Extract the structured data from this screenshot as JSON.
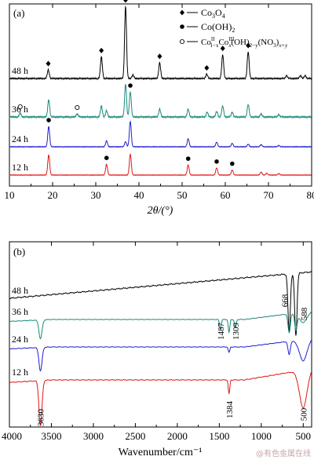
{
  "chart_data": [
    {
      "type": "line",
      "panel_label": "(a)",
      "xlabel": "2θ/(°)",
      "xlim": [
        10,
        80
      ],
      "xticks": [
        10,
        20,
        30,
        40,
        50,
        60,
        70,
        80
      ],
      "grid": false,
      "legend_position": "top-right",
      "legend": [
        {
          "marker": "diamond",
          "text": "Co3O4"
        },
        {
          "marker": "filled-circle",
          "text": "Co(OH)2"
        },
        {
          "marker": "open-circle",
          "text": "Co(II)1−x Co(III)x (OH)2−y (NO3)x+y"
        }
      ],
      "series": [
        {
          "name": "48 h",
          "color": "#000000",
          "baseline": 0,
          "peaks": [
            [
              19.0,
              0.12
            ],
            [
              31.3,
              0.3
            ],
            [
              36.9,
              1.0
            ],
            [
              38.6,
              0.05
            ],
            [
              44.8,
              0.22
            ],
            [
              55.7,
              0.06
            ],
            [
              59.4,
              0.33
            ],
            [
              65.3,
              0.37
            ],
            [
              74.2,
              0.04
            ],
            [
              77.4,
              0.04
            ],
            [
              78.5,
              0.04
            ]
          ],
          "markers": [
            {
              "x": 19.0,
              "symbol": "diamond"
            },
            {
              "x": 31.3,
              "symbol": "diamond"
            },
            {
              "x": 36.9,
              "symbol": "diamond"
            },
            {
              "x": 44.8,
              "symbol": "diamond"
            },
            {
              "x": 55.7,
              "symbol": "diamond"
            },
            {
              "x": 59.4,
              "symbol": "diamond"
            },
            {
              "x": 65.3,
              "symbol": "diamond"
            }
          ]
        },
        {
          "name": "36 h",
          "color": "#1a8a7a",
          "baseline": 1,
          "peaks": [
            [
              12.5,
              0.05
            ],
            [
              19.1,
              0.22
            ],
            [
              25.7,
              0.04
            ],
            [
              31.3,
              0.14
            ],
            [
              32.5,
              0.08
            ],
            [
              36.9,
              0.42
            ],
            [
              38.0,
              0.32
            ],
            [
              44.8,
              0.1
            ],
            [
              51.4,
              0.1
            ],
            [
              55.8,
              0.06
            ],
            [
              58.0,
              0.07
            ],
            [
              59.4,
              0.14
            ],
            [
              61.6,
              0.06
            ],
            [
              65.3,
              0.16
            ],
            [
              68.3,
              0.04
            ],
            [
              72.4,
              0.03
            ]
          ],
          "markers": [
            {
              "x": 12.5,
              "symbol": "open-circle"
            },
            {
              "x": 25.7,
              "symbol": "open-circle"
            },
            {
              "x": 38.0,
              "symbol": "filled-circle"
            }
          ]
        },
        {
          "name": "24 h",
          "color": "#1f1fd0",
          "baseline": 2,
          "peaks": [
            [
              19.1,
              0.48
            ],
            [
              32.5,
              0.14
            ],
            [
              36.9,
              0.12
            ],
            [
              38.0,
              0.6
            ],
            [
              51.4,
              0.19
            ],
            [
              58.0,
              0.11
            ],
            [
              61.6,
              0.08
            ],
            [
              65.3,
              0.06
            ],
            [
              68.3,
              0.05
            ],
            [
              72.4,
              0.03
            ]
          ],
          "markers": [
            {
              "x": 19.1,
              "symbol": "filled-circle"
            }
          ]
        },
        {
          "name": "12 h",
          "color": "#e21818",
          "baseline": 3,
          "peaks": [
            [
              19.1,
              0.56
            ],
            [
              32.5,
              0.3
            ],
            [
              38.0,
              0.58
            ],
            [
              51.4,
              0.28
            ],
            [
              58.0,
              0.2
            ],
            [
              61.6,
              0.14
            ],
            [
              68.3,
              0.08
            ],
            [
              69.6,
              0.05
            ],
            [
              72.4,
              0.04
            ]
          ],
          "markers": [
            {
              "x": 32.5,
              "symbol": "filled-circle"
            },
            {
              "x": 51.4,
              "symbol": "filled-circle"
            },
            {
              "x": 58.0,
              "symbol": "filled-circle"
            },
            {
              "x": 61.6,
              "symbol": "filled-circle"
            }
          ]
        }
      ]
    },
    {
      "type": "line",
      "panel_label": "(b)",
      "xlabel": "Wavenumber/cm⁻¹",
      "xlim": [
        4000,
        400
      ],
      "xticks": [
        4000,
        3500,
        3000,
        2500,
        2000,
        1500,
        1000,
        500
      ],
      "grid": false,
      "series": [
        {
          "name": "48 h",
          "color": "#000000",
          "baseline": 0,
          "slope": 0.35,
          "bands": [
            [
              668,
              0.62
            ],
            [
              588,
              0.66
            ]
          ]
        },
        {
          "name": "36 h",
          "color": "#1a8a7a",
          "baseline": 1,
          "slope": 0.05,
          "bands": [
            [
              3630,
              0.4
            ],
            [
              1487,
              0.2
            ],
            [
              1384,
              0.28
            ],
            [
              1309,
              0.18
            ],
            [
              668,
              0.4
            ],
            [
              588,
              0.34
            ],
            [
              500,
              0.22
            ]
          ]
        },
        {
          "name": "24 h",
          "color": "#1f1fd0",
          "baseline": 2,
          "slope": 0.05,
          "bands": [
            [
              3630,
              0.5
            ],
            [
              1384,
              0.12
            ],
            [
              668,
              0.28
            ],
            [
              500,
              0.45
            ]
          ]
        },
        {
          "name": "12 h",
          "color": "#e21818",
          "baseline": 3,
          "slope": 0.05,
          "bands": [
            [
              3630,
              0.72
            ],
            [
              1384,
              0.22
            ],
            [
              500,
              0.6
            ]
          ]
        }
      ],
      "annotations": [
        {
          "text": "668",
          "x": 668
        },
        {
          "text": "588",
          "x": 588
        },
        {
          "text": "1487",
          "x": 1487
        },
        {
          "text": "1309",
          "x": 1309
        },
        {
          "text": "3630",
          "x": 3630
        },
        {
          "text": "1384",
          "x": 1384
        },
        {
          "text": "500",
          "x": 500
        }
      ]
    }
  ],
  "watermark": "@有色金属在线"
}
